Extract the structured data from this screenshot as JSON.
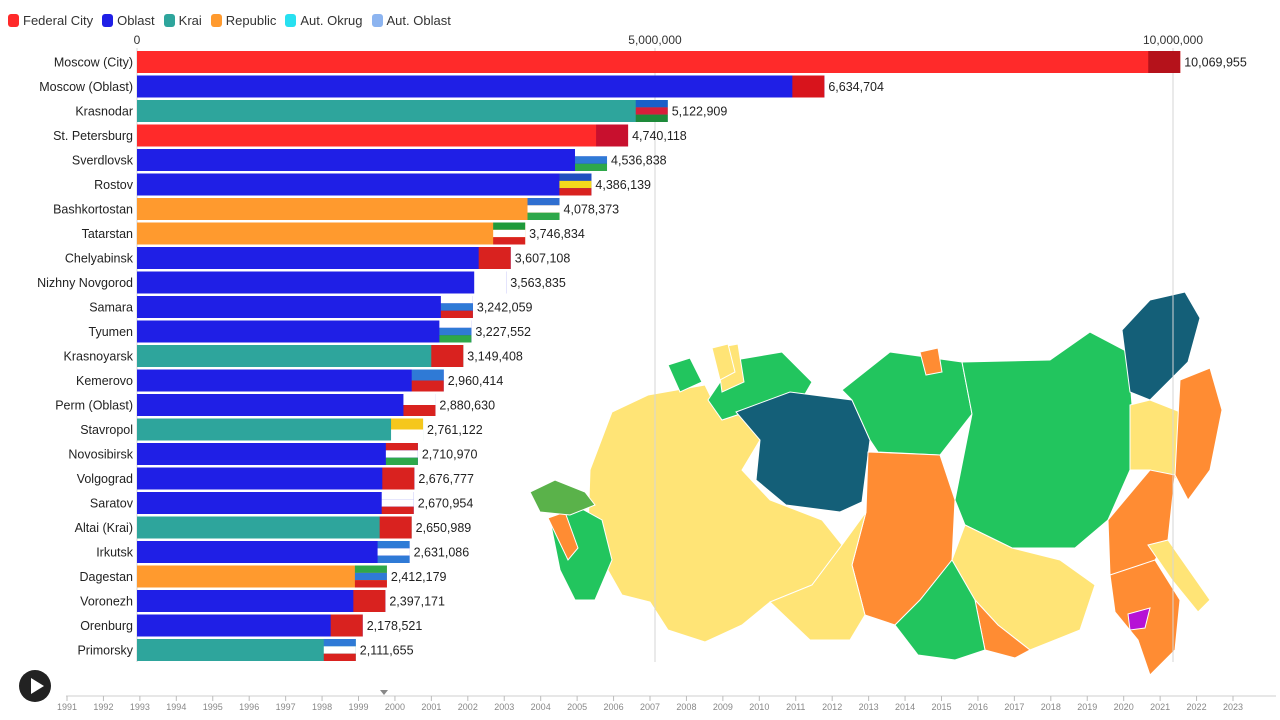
{
  "legend": [
    {
      "label": "Federal City",
      "color": "#ff2a2a"
    },
    {
      "label": "Oblast",
      "color": "#1f1fe6"
    },
    {
      "label": "Krai",
      "color": "#2ea59c"
    },
    {
      "label": "Republic",
      "color": "#ff9a2e"
    },
    {
      "label": "Aut. Okrug",
      "color": "#27e0f0"
    },
    {
      "label": "Aut. Oblast",
      "color": "#8cb4f0"
    }
  ],
  "chart_data": {
    "type": "bar",
    "orientation": "horizontal",
    "x_ticks": [
      "0",
      "5,000,000",
      "10,000,000"
    ],
    "x_tick_values": [
      0,
      5000000,
      10000000
    ],
    "categories": [
      "Moscow (City)",
      "Moscow (Oblast)",
      "Krasnodar",
      "St. Petersburg",
      "Sverdlovsk",
      "Rostov",
      "Bashkortostan",
      "Tatarstan",
      "Chelyabinsk",
      "Nizhny Novgorod",
      "Samara",
      "Tyumen",
      "Krasnoyarsk",
      "Kemerovo",
      "Perm (Oblast)",
      "Stavropol",
      "Novosibirsk",
      "Volgograd",
      "Saratov",
      "Altai (Krai)",
      "Irkutsk",
      "Dagestan",
      "Voronezh",
      "Orenburg",
      "Primorsky"
    ],
    "values": [
      10069955,
      6634704,
      5122909,
      4740118,
      4536838,
      4386139,
      4078373,
      3746834,
      3607108,
      3563835,
      3242059,
      3227552,
      3149408,
      2960414,
      2880630,
      2761122,
      2710970,
      2676777,
      2670954,
      2650989,
      2631086,
      2412179,
      2397171,
      2178521,
      2111655
    ],
    "value_labels": [
      "10,069,955",
      "6,634,704",
      "5,122,909",
      "4,740,118",
      "4,536,838",
      "4,386,139",
      "4,078,373",
      "3,746,834",
      "3,607,108",
      "3,563,835",
      "3,242,059",
      "3,227,552",
      "3,149,408",
      "2,960,414",
      "2,880,630",
      "2,761,122",
      "2,710,970",
      "2,676,777",
      "2,670,954",
      "2,650,989",
      "2,631,086",
      "2,412,179",
      "2,397,171",
      "2,178,521",
      "2,111,655"
    ],
    "region_types": [
      "Federal City",
      "Oblast",
      "Krai",
      "Federal City",
      "Oblast",
      "Oblast",
      "Republic",
      "Republic",
      "Oblast",
      "Oblast",
      "Oblast",
      "Oblast",
      "Krai",
      "Oblast",
      "Oblast",
      "Krai",
      "Oblast",
      "Oblast",
      "Oblast",
      "Krai",
      "Oblast",
      "Republic",
      "Oblast",
      "Oblast",
      "Krai"
    ],
    "flag_colors": [
      [
        "#b5121b",
        "#b5121b"
      ],
      [
        "#d8141c",
        "#d8141c"
      ],
      [
        "#1b5fc9",
        "#d81e3a",
        "#1e8a3a"
      ],
      [
        "#c8102e",
        "#c8102e"
      ],
      [
        "#ffffff",
        "#2f7ad6",
        "#2ea84a"
      ],
      [
        "#1f4fbf",
        "#f5d81c",
        "#d9221f"
      ],
      [
        "#2f6fd0",
        "#ffffff",
        "#2ea84a"
      ],
      [
        "#1f9a3a",
        "#ffffff",
        "#d9221f"
      ],
      [
        "#d9221f",
        "#d9221f"
      ],
      [
        "#ffffff",
        "#ffffff"
      ],
      [
        "#ffffff",
        "#2f7ad6",
        "#d9221f"
      ],
      [
        "#ffffff",
        "#2f7ad6",
        "#2ea84a"
      ],
      [
        "#d9221f",
        "#d9221f"
      ],
      [
        "#2f7ad6",
        "#d9221f"
      ],
      [
        "#ffffff",
        "#d9221f"
      ],
      [
        "#f5c71c",
        "#ffffff"
      ],
      [
        "#d9221f",
        "#ffffff",
        "#2ea84a"
      ],
      [
        "#d9221f",
        "#d9221f"
      ],
      [
        "#ffffff",
        "#ffffff",
        "#d9221f"
      ],
      [
        "#d9221f",
        "#d9221f"
      ],
      [
        "#2f7ad6",
        "#ffffff",
        "#2f7ad6"
      ],
      [
        "#2ea84a",
        "#2f7ad6",
        "#d9221f"
      ],
      [
        "#d9221f",
        "#d9221f"
      ],
      [
        "#d9221f",
        "#d9221f"
      ],
      [
        "#2f7ad6",
        "#ffffff",
        "#d9221f"
      ]
    ],
    "timeline": {
      "years": [
        "1991",
        "1992",
        "1993",
        "1994",
        "1995",
        "1996",
        "1997",
        "1998",
        "1999",
        "2000",
        "2001",
        "2002",
        "2003",
        "2004",
        "2005",
        "2006",
        "2007",
        "2008",
        "2009",
        "2010",
        "2011",
        "2012",
        "2013",
        "2014",
        "2015",
        "2016",
        "2017",
        "2018",
        "2019",
        "2020",
        "2021",
        "2022",
        "2023"
      ],
      "marker_year": 1999.7
    }
  }
}
